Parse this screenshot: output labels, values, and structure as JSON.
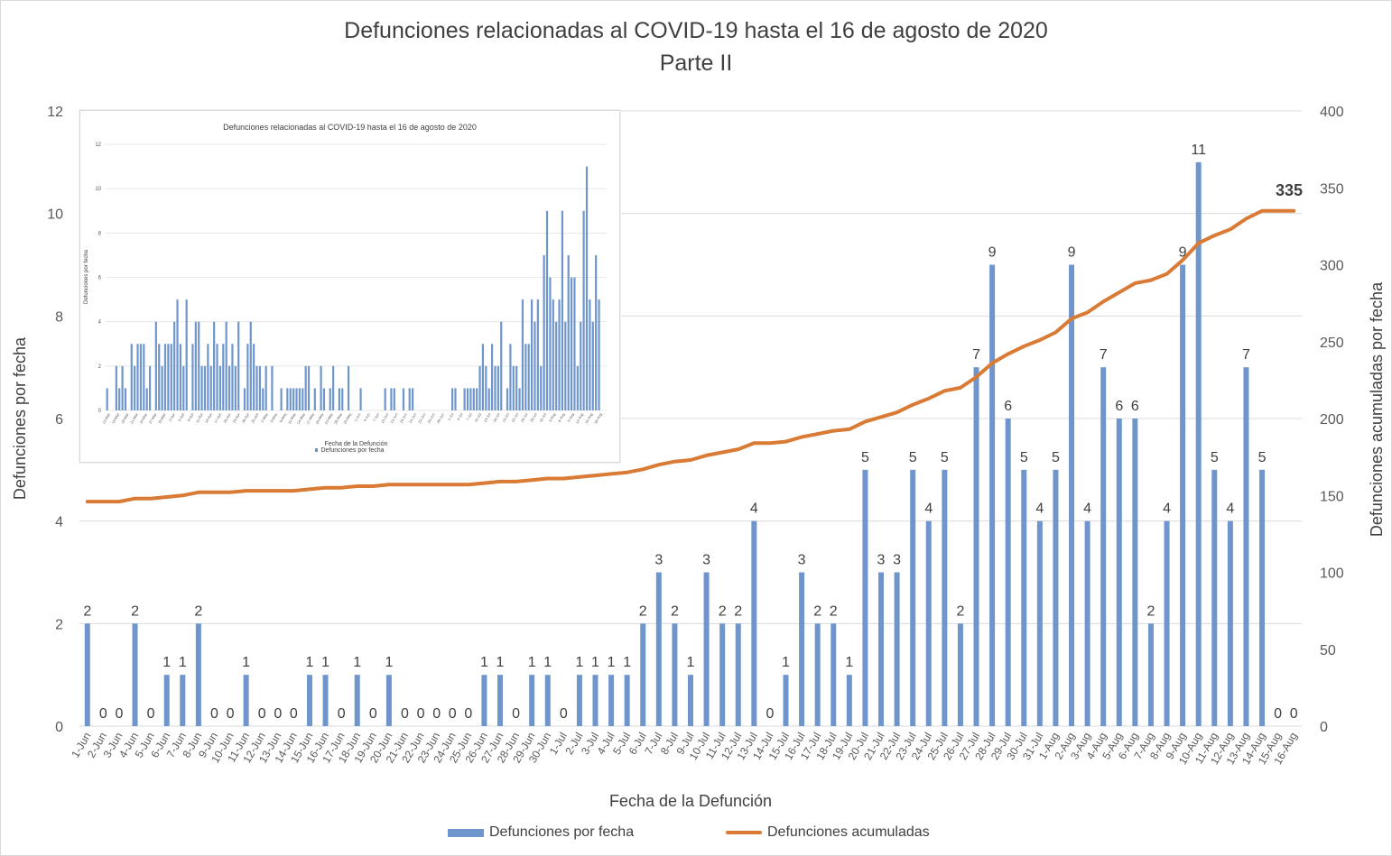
{
  "chart_data": {
    "type": "bar",
    "title": "Defunciones relacionadas al COVID-19 hasta el 16 de agosto de 2020",
    "subtitle": "Parte II",
    "xlabel": "Fecha de la Defunción",
    "ylabel": "Defunciones por fecha",
    "y2label": "Defunciones acumuladas por fecha",
    "ylim": [
      0,
      12
    ],
    "y2lim": [
      0,
      400
    ],
    "yticks": [
      "0",
      "2",
      "4",
      "6",
      "8",
      "10",
      "12"
    ],
    "y2ticks": [
      "0",
      "50",
      "100",
      "150",
      "200",
      "250",
      "300",
      "350",
      "400"
    ],
    "grid": true,
    "legend_position": "bottom",
    "categories": [
      "1-Jun",
      "2-Jun",
      "3-Jun",
      "4-Jun",
      "5-Jun",
      "6-Jun",
      "7-Jun",
      "8-Jun",
      "9-Jun",
      "10-Jun",
      "11-Jun",
      "12-Jun",
      "13-Jun",
      "14-Jun",
      "15-Jun",
      "16-Jun",
      "17-Jun",
      "18-Jun",
      "19-Jun",
      "20-Jun",
      "21-Jun",
      "22-Jun",
      "23-Jun",
      "24-Jun",
      "25-Jun",
      "26-Jun",
      "27-Jun",
      "28-Jun",
      "29-Jun",
      "30-Jun",
      "1-Jul",
      "2-Jul",
      "3-Jul",
      "4-Jul",
      "5-Jul",
      "6-Jul",
      "7-Jul",
      "8-Jul",
      "9-Jul",
      "10-Jul",
      "11-Jul",
      "12-Jul",
      "13-Jul",
      "14-Jul",
      "15-Jul",
      "16-Jul",
      "17-Jul",
      "18-Jul",
      "19-Jul",
      "20-Jul",
      "21-Jul",
      "22-Jul",
      "23-Jul",
      "24-Jul",
      "25-Jul",
      "26-Jul",
      "27-Jul",
      "28-Jul",
      "29-Jul",
      "30-Jul",
      "31-Jul",
      "1-Aug",
      "2-Aug",
      "3-Aug",
      "4-Aug",
      "5-Aug",
      "6-Aug",
      "7-Aug",
      "8-Aug",
      "9-Aug",
      "10-Aug",
      "11-Aug",
      "12-Aug",
      "13-Aug",
      "14-Aug",
      "15-Aug",
      "16-Aug"
    ],
    "series": [
      {
        "name": "Defunciones por fecha",
        "type": "bar",
        "axis": "left",
        "color": "#6f96cc",
        "values": [
          2,
          0,
          0,
          2,
          0,
          1,
          1,
          2,
          0,
          0,
          1,
          0,
          0,
          0,
          1,
          1,
          0,
          1,
          0,
          1,
          0,
          0,
          0,
          0,
          0,
          1,
          1,
          0,
          1,
          1,
          0,
          1,
          1,
          1,
          1,
          2,
          3,
          2,
          1,
          3,
          2,
          2,
          4,
          0,
          1,
          3,
          2,
          2,
          1,
          5,
          3,
          3,
          5,
          4,
          5,
          2,
          7,
          9,
          6,
          5,
          4,
          5,
          9,
          4,
          7,
          6,
          6,
          2,
          4,
          9,
          11,
          5,
          4,
          7,
          5,
          0,
          0
        ]
      },
      {
        "name": "Defunciones acumuladas",
        "type": "line",
        "axis": "right",
        "color": "#d97a35",
        "values": [
          146,
          146,
          146,
          148,
          148,
          149,
          150,
          152,
          152,
          152,
          153,
          153,
          153,
          153,
          154,
          155,
          155,
          156,
          156,
          157,
          157,
          157,
          157,
          157,
          157,
          158,
          159,
          159,
          160,
          161,
          161,
          162,
          163,
          164,
          165,
          167,
          170,
          172,
          173,
          176,
          178,
          180,
          184,
          184,
          185,
          188,
          190,
          192,
          193,
          198,
          201,
          204,
          209,
          213,
          218,
          220,
          227,
          236,
          242,
          247,
          251,
          256,
          265,
          269,
          276,
          282,
          288,
          290,
          294,
          303,
          314,
          319,
          323,
          330,
          335,
          335,
          335
        ],
        "end_label": "335"
      }
    ],
    "inset": {
      "title": "Defunciones relacionadas al COVID-19 hasta el 16 de agosto de 2020",
      "xlabel": "Fecha de la Defunción",
      "ylabel": "Defunciones por fecha",
      "legend": "Defunciones por fecha",
      "yticks": [
        "0",
        "2",
        "4",
        "6",
        "8",
        "10",
        "12"
      ],
      "ylim": [
        0,
        12
      ],
      "values": [
        1,
        0,
        0,
        2,
        1,
        2,
        1,
        0,
        3,
        2,
        3,
        3,
        3,
        1,
        2,
        0,
        4,
        3,
        2,
        3,
        3,
        3,
        4,
        5,
        3,
        2,
        5,
        0,
        3,
        4,
        4,
        2,
        2,
        3,
        2,
        4,
        3,
        2,
        3,
        4,
        2,
        3,
        2,
        4,
        0,
        1,
        3,
        4,
        3,
        2,
        2,
        1,
        2,
        0,
        2,
        0,
        0,
        1,
        0,
        1,
        1,
        1,
        1,
        1,
        1,
        2,
        2,
        0,
        1,
        0,
        2,
        1,
        0,
        1,
        2,
        0,
        1,
        1,
        0,
        2,
        0,
        0,
        0,
        1,
        0,
        0,
        0,
        0,
        0,
        0,
        0,
        1,
        0,
        1,
        1,
        0,
        0,
        1,
        0,
        1,
        1,
        0,
        0,
        0,
        0,
        0,
        0,
        0,
        0,
        0,
        0,
        0,
        0,
        1,
        1,
        0,
        0,
        1,
        1,
        1,
        1,
        1,
        2,
        3,
        2,
        1,
        3,
        2,
        2,
        4,
        0,
        1,
        3,
        2,
        2,
        1,
        5,
        3,
        3,
        5,
        4,
        5,
        2,
        7,
        9,
        6,
        5,
        4,
        5,
        9,
        4,
        7,
        6,
        6,
        2,
        4,
        9,
        11,
        5,
        4,
        7,
        5,
        0,
        0
      ],
      "tick_labels": [
        "12-Mar",
        "15-Mar",
        "18-Mar",
        "21-Mar",
        "24-Mar",
        "27-Mar",
        "30-Mar",
        "2-Apr",
        "5-Apr",
        "8-Apr",
        "11-Apr",
        "14-Apr",
        "17-Apr",
        "20-Apr",
        "23-Apr",
        "26-Apr",
        "29-Apr",
        "2-May",
        "5-May",
        "8-May",
        "11-May",
        "14-May",
        "17-May",
        "20-May",
        "23-May",
        "26-May",
        "29-May",
        "1-Jun",
        "4-Jun",
        "7-Jun",
        "10-Jun",
        "13-Jun",
        "16-Jun",
        "19-Jun",
        "22-Jun",
        "25-Jun",
        "28-Jun",
        "1-Jul",
        "4-Jul",
        "7-Jul",
        "10-Jul",
        "13-Jul",
        "16-Jul",
        "19-Jul",
        "22-Jul",
        "25-Jul",
        "28-Jul",
        "31-Jul",
        "3-Aug",
        "6-Aug",
        "9-Aug",
        "12-Aug",
        "15-Aug",
        "16-Aug"
      ]
    }
  }
}
